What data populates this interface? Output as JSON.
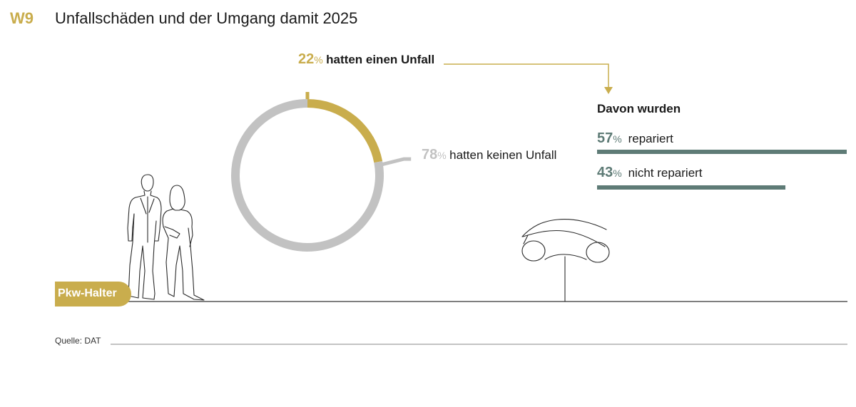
{
  "header": {
    "fig_id": "W9",
    "title": "Unfallschäden und der Umgang damit 2025"
  },
  "badge": "Pkw-Halter",
  "source": "Quelle: DAT",
  "colors": {
    "gold": "#c9ad4d",
    "grey": "#c2c2c2",
    "teal": "#5e7b76",
    "line": "#333333"
  },
  "icons": [
    "people-silhouettes-illustration",
    "car-sketch-illustration"
  ],
  "chart_data": [
    {
      "type": "pie",
      "variant": "donut",
      "unit": "%",
      "slices": [
        {
          "value": 22,
          "value_label": "22",
          "label": "hatten einen Unfall",
          "color": "#c9ad4d"
        },
        {
          "value": 78,
          "value_label": "78",
          "label": "hatten keinen Unfall",
          "color": "#c2c2c2"
        }
      ]
    },
    {
      "type": "bar",
      "orientation": "horizontal",
      "title": "Davon wurden",
      "unit": "%",
      "xlim": [
        0,
        57
      ],
      "bars": [
        {
          "value": 57,
          "value_label": "57",
          "label": "repariert",
          "color": "#5e7b76"
        },
        {
          "value": 43,
          "value_label": "43",
          "label": "nicht repariert",
          "color": "#5e7b76"
        }
      ]
    }
  ]
}
